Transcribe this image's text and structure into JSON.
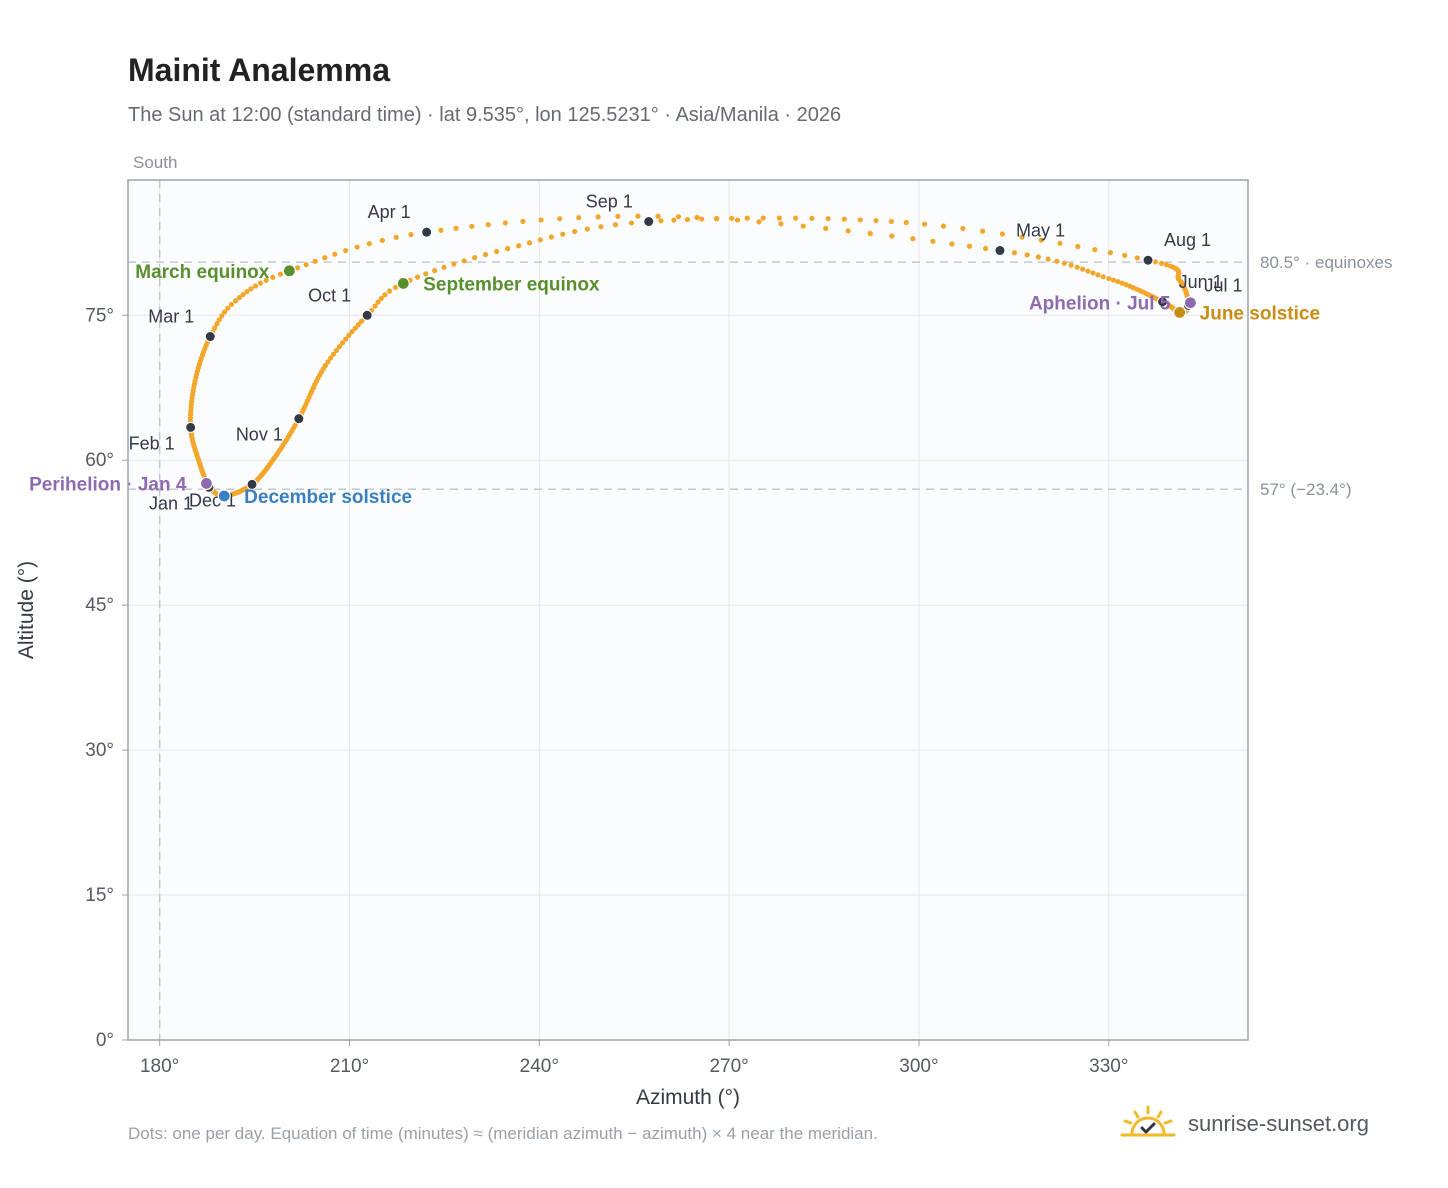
{
  "title": "Mainit Analemma",
  "subtitle": "The Sun at 12:00 (standard time) · lat 9.535°, lon 125.5231° · Asia/Manila · 2026",
  "footnote": "Dots: one per day. Equation of time (minutes) ≈ (meridian azimuth − azimuth) × 4 near the meridian.",
  "brand": {
    "name": "sunrise-sunset.org",
    "logo_icon": "sun-check-logo-icon",
    "logo_color": "#f2b92b"
  },
  "colors": {
    "curve": "#f2a62b",
    "month_marker": "#333a45",
    "equinox": "#5a8f2e",
    "december_solstice": "#3a7fbf",
    "june_solstice": "#c98c14",
    "apsis": "#8e6bb0",
    "reference_line": "#c3c9d2",
    "plot_background": "#fafcfe",
    "grid": "#e3e7ec",
    "axis_frame": "#9aa3b0"
  },
  "chart_data": {
    "type": "scatter",
    "xlabel": "Azimuth (°)",
    "ylabel": "Altitude (°)",
    "xlim": [
      175,
      352
    ],
    "ylim": [
      0,
      89
    ],
    "xticks": [
      180,
      210,
      240,
      270,
      300,
      330
    ],
    "yticks": [
      0,
      15,
      30,
      45,
      60,
      75
    ],
    "xtick_labels": [
      "180°",
      "210°",
      "240°",
      "270°",
      "300°",
      "330°"
    ],
    "ytick_labels": [
      "0°",
      "15°",
      "30°",
      "45°",
      "60°",
      "75°"
    ],
    "grid": true,
    "south_marker": {
      "azimuth": 180,
      "label": "South"
    },
    "reference_lines": [
      {
        "altitude": 80.5,
        "label": "80.5° · equinoxes"
      },
      {
        "altitude": 57,
        "label": "57° (−23.4°)"
      }
    ],
    "daily_path_keypoints": [
      {
        "date": "Jan 1",
        "x": 187.8,
        "y": 57.2
      },
      {
        "date": "Jan 15",
        "x": 186.4,
        "y": 59.5
      },
      {
        "date": "Feb 1",
        "x": 184.9,
        "y": 63.4
      },
      {
        "date": "Feb 15",
        "x": 185.6,
        "y": 68.2
      },
      {
        "date": "Mar 1",
        "x": 188.0,
        "y": 72.8
      },
      {
        "date": "Mar 10",
        "x": 192.0,
        "y": 76.5
      },
      {
        "date": "Mar 20",
        "x": 200.5,
        "y": 79.6
      },
      {
        "date": "Apr 1",
        "x": 222.2,
        "y": 83.6
      },
      {
        "date": "Apr 15",
        "x": 262.0,
        "y": 85.2
      },
      {
        "date": "May 1",
        "x": 312.8,
        "y": 81.7
      },
      {
        "date": "May 15",
        "x": 330.0,
        "y": 78.8
      },
      {
        "date": "Jun 1",
        "x": 338.5,
        "y": 76.4
      },
      {
        "date": "Jun 21",
        "x": 341.2,
        "y": 75.3
      },
      {
        "date": "Jul 1",
        "x": 342.6,
        "y": 76.0
      },
      {
        "date": "Jul 15",
        "x": 341.2,
        "y": 78.6
      },
      {
        "date": "Aug 1",
        "x": 336.2,
        "y": 80.7
      },
      {
        "date": "Aug 15",
        "x": 298.0,
        "y": 84.6
      },
      {
        "date": "Sep 1",
        "x": 257.3,
        "y": 84.7
      },
      {
        "date": "Sep 12",
        "x": 235.0,
        "y": 81.9
      },
      {
        "date": "Sep 23",
        "x": 218.5,
        "y": 78.3
      },
      {
        "date": "Oct 1",
        "x": 212.8,
        "y": 75.0
      },
      {
        "date": "Oct 15",
        "x": 206.2,
        "y": 69.8
      },
      {
        "date": "Nov 1",
        "x": 202.0,
        "y": 64.3
      },
      {
        "date": "Nov 15",
        "x": 198.2,
        "y": 60.3
      },
      {
        "date": "Dec 1",
        "x": 194.6,
        "y": 57.5
      },
      {
        "date": "Dec 21",
        "x": 190.2,
        "y": 56.3
      },
      {
        "date": "Dec 31",
        "x": 187.9,
        "y": 57.1
      }
    ],
    "month_markers": [
      {
        "label": "Jan 1",
        "x": 187.8,
        "y": 57.2,
        "anchor": "bl"
      },
      {
        "label": "Feb 1",
        "x": 184.9,
        "y": 63.4,
        "anchor": "bl"
      },
      {
        "label": "Mar 1",
        "x": 188.0,
        "y": 72.8,
        "anchor": "tl"
      },
      {
        "label": "Apr 1",
        "x": 222.2,
        "y": 83.6,
        "anchor": "tl"
      },
      {
        "label": "May 1",
        "x": 312.8,
        "y": 81.7,
        "anchor": "tr"
      },
      {
        "label": "Jun 1",
        "x": 338.5,
        "y": 76.4,
        "anchor": "tr"
      },
      {
        "label": "Jul 1",
        "x": 342.6,
        "y": 76.0,
        "anchor": "tr"
      },
      {
        "label": "Aug 1",
        "x": 336.2,
        "y": 80.7,
        "anchor": "tr"
      },
      {
        "label": "Sep 1",
        "x": 257.3,
        "y": 84.7,
        "anchor": "tl"
      },
      {
        "label": "Oct 1",
        "x": 212.8,
        "y": 75.0,
        "anchor": "tl"
      },
      {
        "label": "Nov 1",
        "x": 202.0,
        "y": 64.3,
        "anchor": "bl"
      },
      {
        "label": "Dec 1",
        "x": 194.6,
        "y": 57.5,
        "anchor": "bl"
      }
    ],
    "events": [
      {
        "label": "March equinox",
        "x": 200.5,
        "y": 79.6,
        "kind": "equinox",
        "anchor": "l"
      },
      {
        "label": "September equinox",
        "x": 218.5,
        "y": 78.3,
        "kind": "equinox",
        "anchor": "r"
      },
      {
        "label": "December solstice",
        "x": 190.2,
        "y": 56.3,
        "kind": "december_solstice",
        "anchor": "r"
      },
      {
        "label": "June solstice",
        "x": 341.2,
        "y": 75.3,
        "kind": "june_solstice",
        "anchor": "r"
      },
      {
        "label": "Perihelion · Jan 4",
        "x": 187.4,
        "y": 57.6,
        "kind": "apsis",
        "anchor": "l"
      },
      {
        "label": "Aphelion · Jul 5",
        "x": 342.9,
        "y": 76.3,
        "kind": "apsis",
        "anchor": "l"
      }
    ]
  }
}
